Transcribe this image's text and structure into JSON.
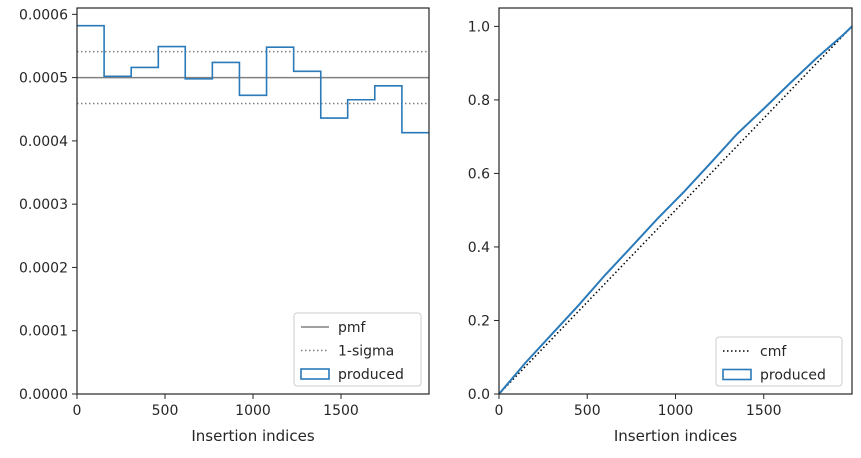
{
  "chart_data": [
    {
      "type": "line",
      "xlabel": "Insertion indices",
      "ylabel": "",
      "xlim": [
        0,
        2000
      ],
      "ylim": [
        0,
        0.00061
      ],
      "xticks": [
        0,
        500,
        1000,
        1500
      ],
      "xtick_labels": [
        "0",
        "500",
        "1000",
        "1500"
      ],
      "yticks": [
        0,
        0.0001,
        0.0002,
        0.0003,
        0.0004,
        0.0005,
        0.0006
      ],
      "ytick_labels": [
        "0.0000",
        "0.0001",
        "0.0002",
        "0.0003",
        "0.0004",
        "0.0005",
        "0.0006"
      ],
      "grid": false,
      "legend_position": "lower-right",
      "colors": {
        "produced": "#2a7ab9",
        "reference": "#808080",
        "sigma": "#808080"
      },
      "series": [
        {
          "name": "pmf",
          "style": "solid",
          "y": 0.0005
        },
        {
          "name": "1-sigma",
          "style": "dotted",
          "y": [
            0.000541,
            0.000459
          ]
        },
        {
          "name": "produced",
          "style": "step",
          "bin_edges": [
            0,
            154,
            308,
            462,
            615,
            769,
            923,
            1077,
            1231,
            1385,
            1538,
            1692,
            1846,
            2000
          ],
          "values": [
            0.000582,
            0.000502,
            0.000516,
            0.000549,
            0.000498,
            0.000524,
            0.000472,
            0.000548,
            0.00051,
            0.000436,
            0.000465,
            0.000487,
            0.000413
          ]
        }
      ]
    },
    {
      "type": "line",
      "xlabel": "Insertion indices",
      "ylabel": "",
      "xlim": [
        0,
        2000
      ],
      "ylim": [
        0,
        1.05
      ],
      "xticks": [
        0,
        500,
        1000,
        1500
      ],
      "xtick_labels": [
        "0",
        "500",
        "1000",
        "1500"
      ],
      "yticks": [
        0,
        0.2,
        0.4,
        0.6,
        0.8,
        1.0
      ],
      "ytick_labels": [
        "0.0",
        "0.2",
        "0.4",
        "0.6",
        "0.8",
        "1.0"
      ],
      "grid": false,
      "legend_position": "lower-right",
      "colors": {
        "produced": "#2a7ab9",
        "cmf": "#000000"
      },
      "series": [
        {
          "name": "cmf",
          "style": "dotted",
          "x": [
            0,
            2000
          ],
          "y": [
            0,
            1.0
          ]
        },
        {
          "name": "produced",
          "style": "step",
          "x": [
            0,
            150,
            300,
            450,
            600,
            750,
            900,
            1050,
            1200,
            1350,
            1500,
            1650,
            1800,
            1950,
            2000
          ],
          "y": [
            0,
            0.085,
            0.163,
            0.241,
            0.323,
            0.4,
            0.478,
            0.551,
            0.629,
            0.708,
            0.776,
            0.846,
            0.914,
            0.977,
            1.0
          ]
        }
      ]
    }
  ]
}
